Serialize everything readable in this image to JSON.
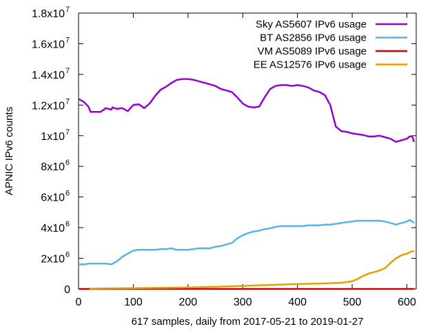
{
  "chart_data": {
    "type": "line",
    "title": "",
    "xlabel": "617 samples, daily from 2017-05-21 to 2019-01-27",
    "ylabel": "APNIC IPv6 counts",
    "xlim": [
      0,
      617
    ],
    "ylim": [
      0,
      18000000
    ],
    "grid": false,
    "legend_position": "top-right",
    "x_ticks": [
      {
        "value": 0,
        "label": "0"
      },
      {
        "value": 100,
        "label": "100"
      },
      {
        "value": 200,
        "label": "200"
      },
      {
        "value": 300,
        "label": "300"
      },
      {
        "value": 400,
        "label": "400"
      },
      {
        "value": 500,
        "label": "500"
      },
      {
        "value": 600,
        "label": "600"
      }
    ],
    "y_ticks": [
      {
        "value": 0,
        "mantissa": "0",
        "exponent": ""
      },
      {
        "value": 2000000,
        "mantissa": "2x10",
        "exponent": "6"
      },
      {
        "value": 4000000,
        "mantissa": "4x10",
        "exponent": "6"
      },
      {
        "value": 6000000,
        "mantissa": "6x10",
        "exponent": "6"
      },
      {
        "value": 8000000,
        "mantissa": "8x10",
        "exponent": "6"
      },
      {
        "value": 10000000,
        "mantissa": "1x10",
        "exponent": "7"
      },
      {
        "value": 12000000,
        "mantissa": "1.2x10",
        "exponent": "7"
      },
      {
        "value": 14000000,
        "mantissa": "1.4x10",
        "exponent": "7"
      },
      {
        "value": 16000000,
        "mantissa": "1.6x10",
        "exponent": "7"
      },
      {
        "value": 18000000,
        "mantissa": "1.8x10",
        "exponent": "7"
      }
    ],
    "series": [
      {
        "name": "Sky AS5607 IPv6 usage",
        "color": "#9400d3",
        "x": [
          0,
          10,
          18,
          22,
          28,
          40,
          50,
          60,
          62,
          70,
          80,
          90,
          100,
          110,
          120,
          130,
          140,
          150,
          160,
          170,
          180,
          190,
          200,
          210,
          220,
          230,
          240,
          250,
          260,
          270,
          280,
          290,
          300,
          310,
          320,
          330,
          340,
          350,
          360,
          370,
          380,
          390,
          400,
          410,
          420,
          430,
          440,
          450,
          460,
          470,
          480,
          490,
          500,
          510,
          520,
          530,
          540,
          550,
          560,
          570,
          580,
          590,
          600,
          605,
          610,
          613
        ],
        "y": [
          12400000,
          12200000,
          11900000,
          11550000,
          11550000,
          11550000,
          11800000,
          11700000,
          11850000,
          11750000,
          11800000,
          11600000,
          12000000,
          12050000,
          11800000,
          12100000,
          12600000,
          13000000,
          13200000,
          13450000,
          13650000,
          13700000,
          13700000,
          13650000,
          13550000,
          13450000,
          13350000,
          13250000,
          13050000,
          12950000,
          12850000,
          12500000,
          12100000,
          11900000,
          11850000,
          11900000,
          12500000,
          13050000,
          13250000,
          13300000,
          13300000,
          13250000,
          13300000,
          13250000,
          13150000,
          12950000,
          12850000,
          12650000,
          12000000,
          10600000,
          10300000,
          10250000,
          10150000,
          10100000,
          10050000,
          9950000,
          9950000,
          10000000,
          9900000,
          9800000,
          9600000,
          9700000,
          9800000,
          9950000,
          9950000,
          9600000
        ]
      },
      {
        "name": "BT AS2856 IPv6 usage",
        "color": "#56b4e9",
        "x": [
          0,
          10,
          20,
          30,
          40,
          50,
          60,
          70,
          80,
          90,
          100,
          110,
          120,
          130,
          140,
          150,
          160,
          170,
          180,
          190,
          200,
          210,
          220,
          230,
          240,
          250,
          260,
          270,
          280,
          290,
          300,
          310,
          320,
          330,
          340,
          350,
          360,
          370,
          380,
          390,
          400,
          410,
          420,
          430,
          440,
          450,
          460,
          470,
          480,
          490,
          500,
          510,
          520,
          530,
          540,
          550,
          560,
          570,
          580,
          590,
          600,
          605,
          610,
          613
        ],
        "y": [
          1600000,
          1600000,
          1650000,
          1650000,
          1650000,
          1650000,
          1600000,
          1800000,
          2100000,
          2300000,
          2500000,
          2550000,
          2550000,
          2550000,
          2550000,
          2600000,
          2600000,
          2650000,
          2550000,
          2550000,
          2550000,
          2600000,
          2650000,
          2650000,
          2650000,
          2750000,
          2800000,
          2900000,
          3000000,
          3300000,
          3500000,
          3650000,
          3750000,
          3800000,
          3900000,
          3950000,
          4050000,
          4100000,
          4100000,
          4100000,
          4100000,
          4100000,
          4150000,
          4150000,
          4150000,
          4200000,
          4200000,
          4250000,
          4300000,
          4350000,
          4400000,
          4450000,
          4450000,
          4450000,
          4450000,
          4450000,
          4400000,
          4300000,
          4200000,
          4300000,
          4400000,
          4500000,
          4400000,
          4300000
        ]
      },
      {
        "name": "VM AS5089 IPv6 usage",
        "color": "#cc0000",
        "x": [
          0,
          100,
          200,
          300,
          400,
          500,
          613
        ],
        "y": [
          0,
          0,
          0,
          0,
          0,
          0,
          0
        ]
      },
      {
        "name": "EE AS12576 IPv6 usage",
        "color": "#e69f00",
        "x": [
          20,
          50,
          100,
          150,
          200,
          250,
          300,
          350,
          400,
          450,
          480,
          500,
          510,
          520,
          530,
          540,
          550,
          560,
          570,
          580,
          590,
          600,
          605,
          610,
          613
        ],
        "y": [
          20000,
          30000,
          50000,
          70000,
          100000,
          140000,
          200000,
          260000,
          320000,
          360000,
          400000,
          500000,
          650000,
          850000,
          1000000,
          1100000,
          1200000,
          1350000,
          1700000,
          2000000,
          2200000,
          2300000,
          2400000,
          2450000,
          2500000
        ]
      }
    ]
  }
}
